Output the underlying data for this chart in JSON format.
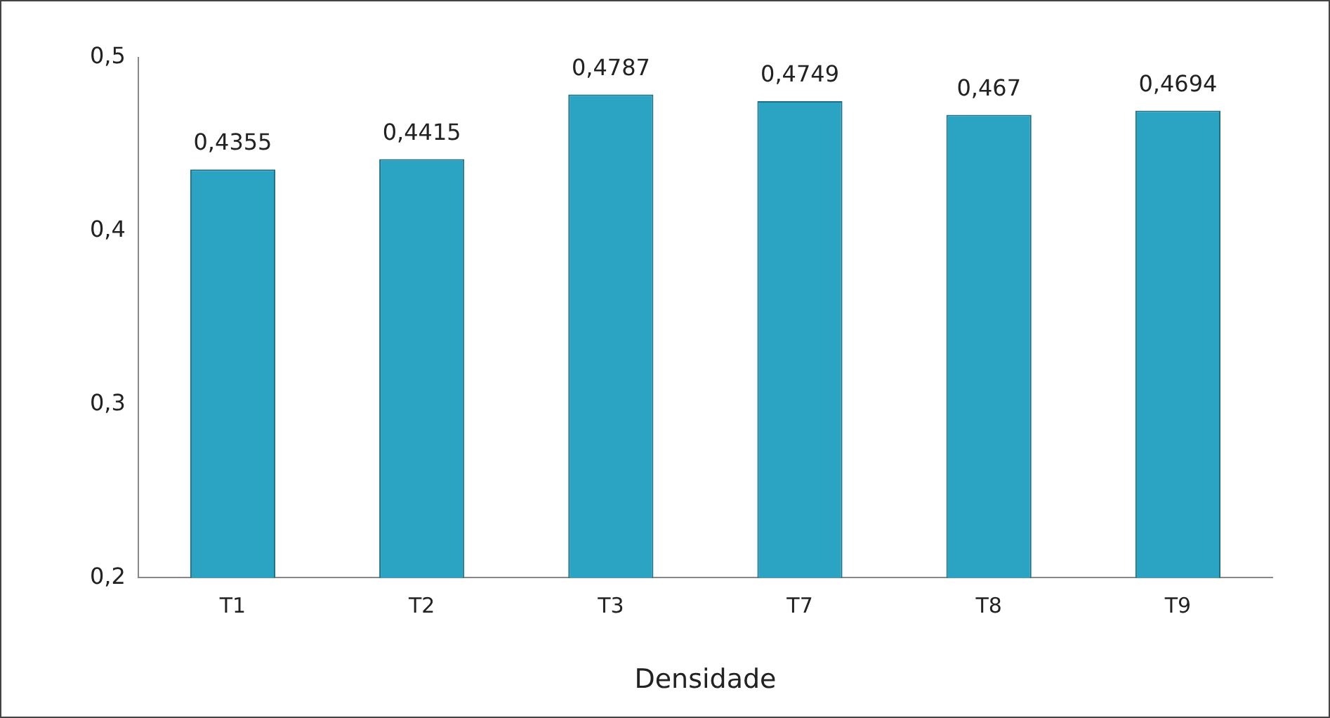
{
  "chart_data": {
    "type": "bar",
    "xlabel": "Densidade",
    "categories": [
      "T1",
      "T2",
      "T3",
      "T7",
      "T8",
      "T9"
    ],
    "values": [
      0.4355,
      0.4415,
      0.4787,
      0.4749,
      0.467,
      0.4694
    ],
    "value_labels": [
      "0,4355",
      "0,4415",
      "0,4787",
      "0,4749",
      "0,467",
      "0,4694"
    ],
    "color": "#2ba3c2",
    "ylim": [
      0.2,
      0.5
    ],
    "yticks": [
      {
        "value": 0.2,
        "label": "0,2"
      },
      {
        "value": 0.3,
        "label": "0,3"
      },
      {
        "value": 0.4,
        "label": "0,4"
      },
      {
        "value": 0.5,
        "label": "0,5"
      }
    ],
    "grid": false,
    "legend": false
  }
}
